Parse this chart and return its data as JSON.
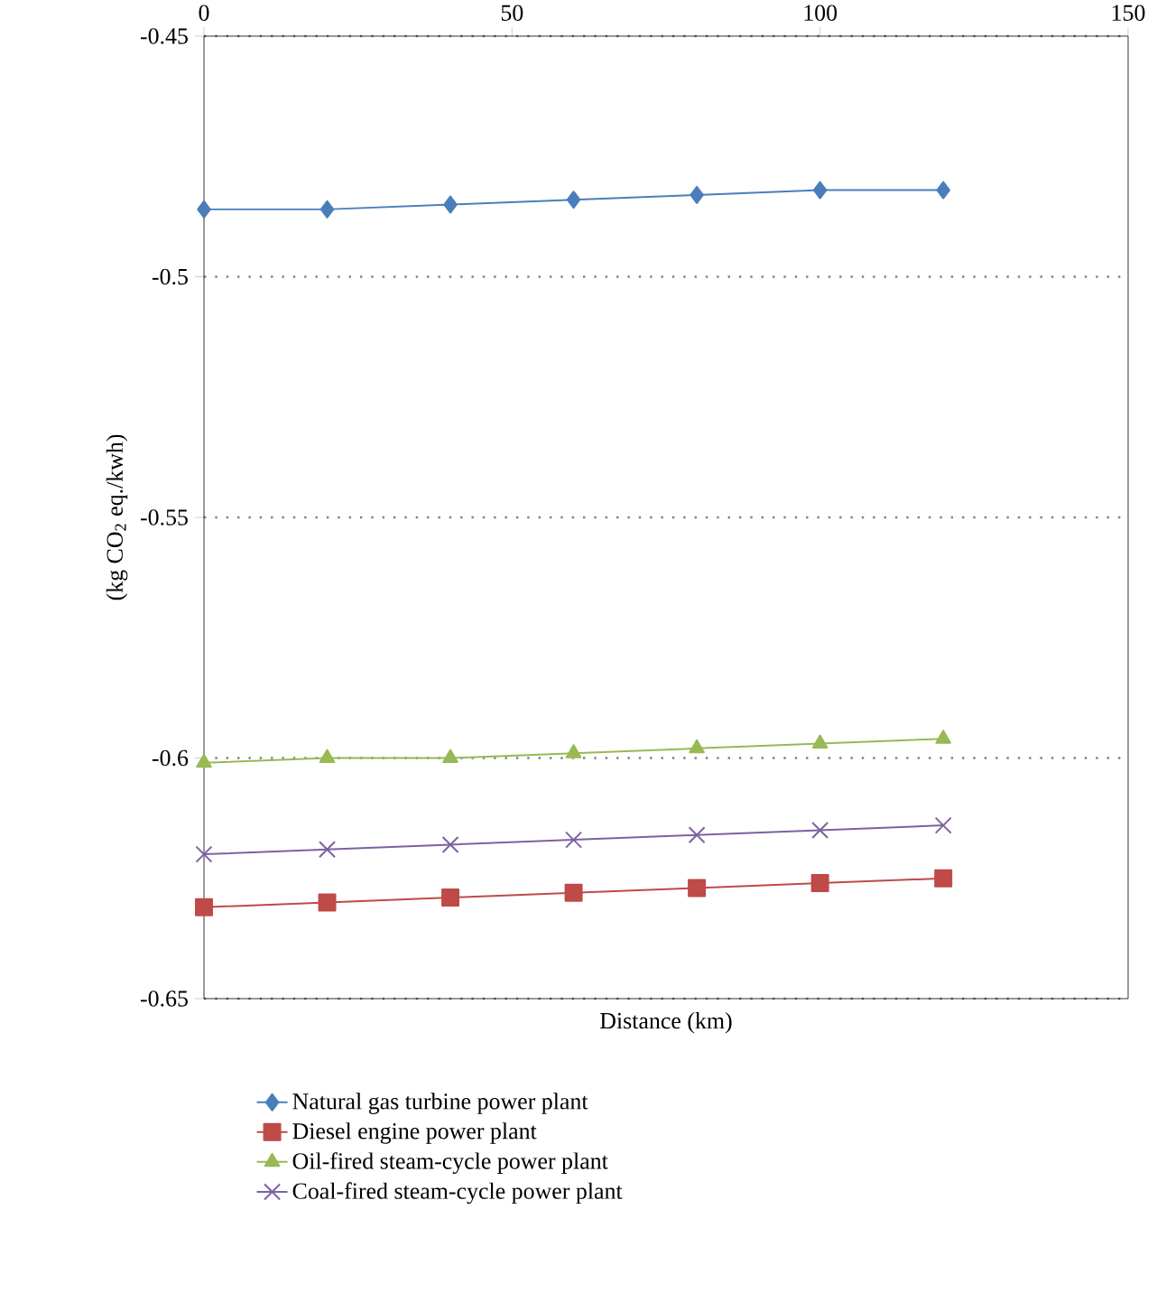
{
  "chart_data": {
    "type": "line",
    "xlabel": "Distance (km)",
    "ylabel": "(kg CO$_{2}$ eq./kwh)",
    "x": [
      0,
      20,
      40,
      60,
      80,
      100,
      120
    ],
    "xlim": [
      0,
      150
    ],
    "xticks": [
      0,
      50,
      100,
      150
    ],
    "ylim": [
      -0.65,
      -0.45
    ],
    "yticks": [
      -0.65,
      -0.6,
      -0.55,
      -0.5,
      -0.45
    ],
    "grid": "y",
    "legend": "bottom",
    "line_style": "solid",
    "series": [
      {
        "name": "Natural gas turbine power plant",
        "color": "#4a7ebb",
        "marker": "diamond",
        "values": [
          -0.486,
          -0.486,
          -0.485,
          -0.484,
          -0.483,
          -0.482,
          -0.482
        ]
      },
      {
        "name": "Diesel engine power plant",
        "color": "#be4b48",
        "marker": "square",
        "values": [
          -0.631,
          -0.63,
          -0.629,
          -0.628,
          -0.627,
          -0.626,
          -0.625
        ]
      },
      {
        "name": "Oil-fired steam-cycle power plant",
        "color": "#98b954",
        "marker": "triangle",
        "values": [
          -0.601,
          -0.6,
          -0.6,
          -0.599,
          -0.598,
          -0.597,
          -0.596
        ]
      },
      {
        "name": "Coal-fired steam-cycle power plant",
        "color": "#7d60a0",
        "marker": "cross",
        "values": [
          -0.62,
          -0.619,
          -0.618,
          -0.617,
          -0.616,
          -0.615,
          -0.614
        ]
      }
    ]
  }
}
